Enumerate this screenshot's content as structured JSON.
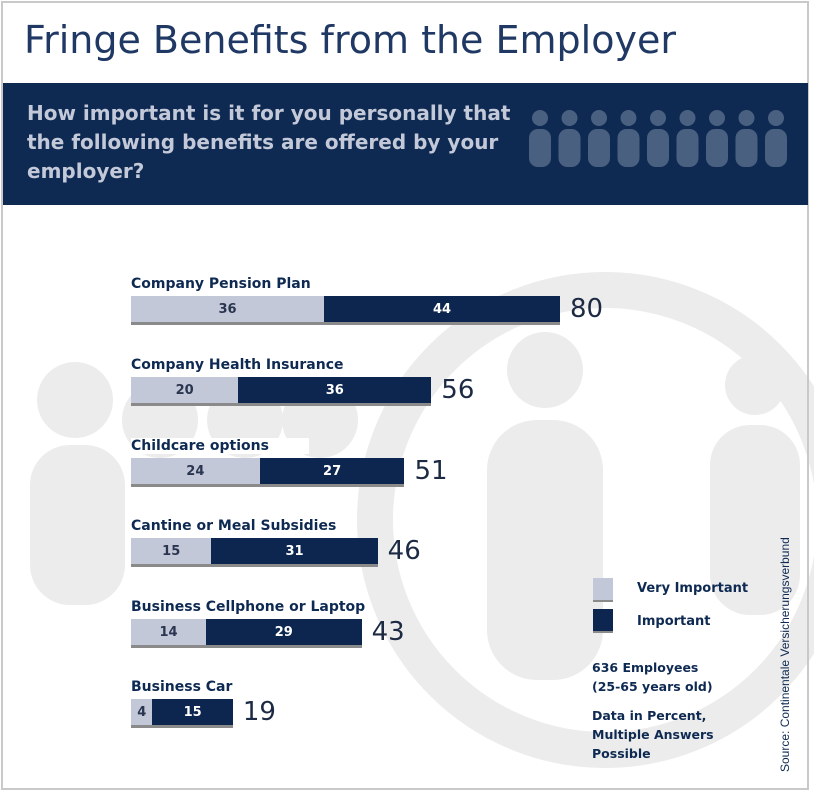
{
  "title": "Fringe Benefits from the Employer",
  "question": "How important is it for you personally that the following benefits are offered by your employer?",
  "colors": {
    "very_important": "#c2c8d8",
    "important": "#0d2650",
    "band": "#0e2a52"
  },
  "chart_data": {
    "type": "bar",
    "orientation": "horizontal",
    "stacked": true,
    "categories": [
      "Company Pension Plan",
      "Company Health Insurance",
      "Childcare options",
      "Cantine or Meal Subsidies",
      "Business Cellphone or Laptop",
      "Business Car"
    ],
    "series": [
      {
        "name": "Very Important",
        "values": [
          36,
          20,
          24,
          15,
          14,
          4
        ]
      },
      {
        "name": "Important",
        "values": [
          44,
          36,
          27,
          31,
          29,
          15
        ]
      }
    ],
    "totals": [
      80,
      56,
      51,
      46,
      43,
      19
    ],
    "xlim": [
      0,
      80
    ],
    "legend_position": "bottom-right",
    "units": "percent"
  },
  "notes": {
    "sample": "636 Employees",
    "age": "(25-65 years old)",
    "data1": "Data in Percent,",
    "data2": "Multiple Answers",
    "data3": "Possible"
  },
  "source": "Source: Continentale Versicherungsverbund"
}
